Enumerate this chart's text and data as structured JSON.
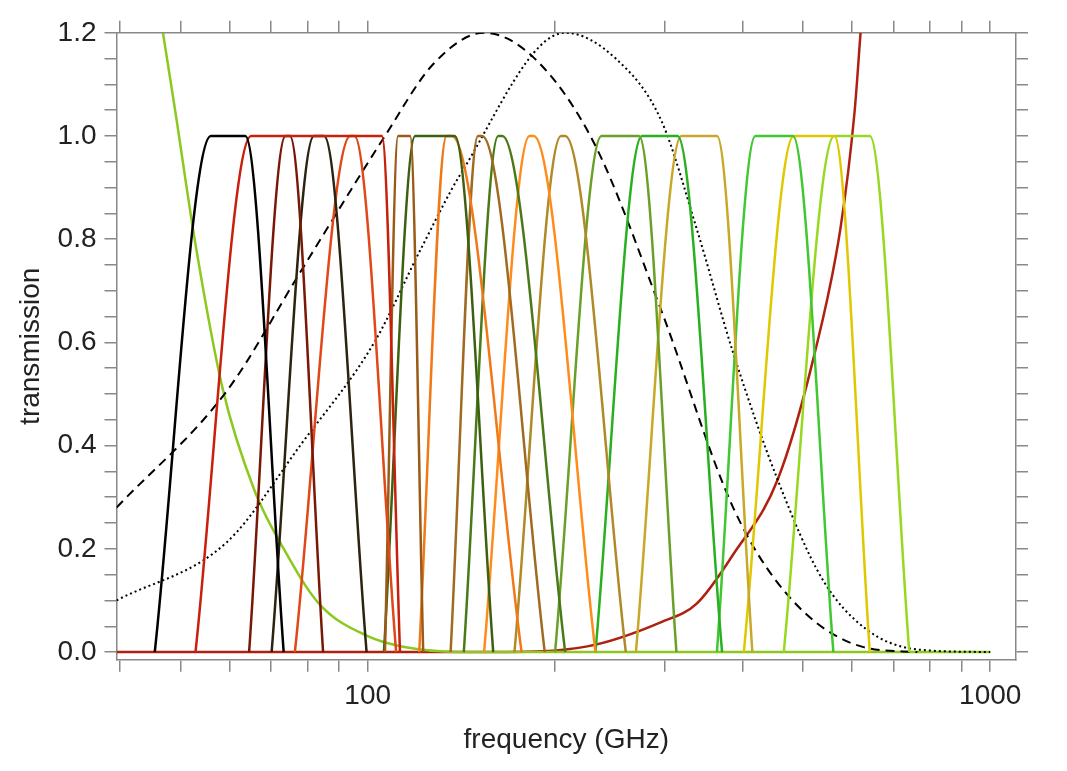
{
  "chart_data": {
    "type": "line",
    "xlabel": "frequency (GHz)",
    "ylabel": "transmission",
    "log": "x",
    "marker": "none",
    "xlim": [
      39.5,
      1100
    ],
    "ylim": [
      -0.015,
      1.2
    ],
    "xticks": [
      {
        "value": 40,
        "label": null
      },
      {
        "value": 50,
        "label": null
      },
      {
        "value": 60,
        "label": null
      },
      {
        "value": 70,
        "label": null
      },
      {
        "value": 80,
        "label": null
      },
      {
        "value": 90,
        "label": null
      },
      100,
      {
        "value": 200,
        "label": null
      },
      {
        "value": 300,
        "label": null
      },
      {
        "value": 400,
        "label": null
      },
      {
        "value": 500,
        "label": null
      },
      {
        "value": 600,
        "label": null
      },
      {
        "value": 700,
        "label": null
      },
      {
        "value": 800,
        "label": null
      },
      {
        "value": 900,
        "label": null
      },
      1000
    ],
    "yticks": [
      {
        "value": 0,
        "label": "0.0"
      },
      {
        "value": 0.05,
        "label": null
      },
      {
        "value": 0.1,
        "label": null
      },
      {
        "value": 0.15,
        "label": null
      },
      {
        "value": 0.2,
        "label": "0.2"
      },
      {
        "value": 0.25,
        "label": null
      },
      {
        "value": 0.3,
        "label": null
      },
      {
        "value": 0.35,
        "label": null
      },
      {
        "value": 0.4,
        "label": "0.4"
      },
      {
        "value": 0.45,
        "label": null
      },
      {
        "value": 0.5,
        "label": null
      },
      {
        "value": 0.55,
        "label": null
      },
      {
        "value": 0.6,
        "label": "0.6"
      },
      {
        "value": 0.65,
        "label": null
      },
      {
        "value": 0.7,
        "label": null
      },
      {
        "value": 0.75,
        "label": null
      },
      {
        "value": 0.8,
        "label": "0.8"
      },
      {
        "value": 0.85,
        "label": null
      },
      {
        "value": 0.9,
        "label": null
      },
      {
        "value": 0.95,
        "label": null
      },
      {
        "value": 1.0,
        "label": "1.0"
      },
      {
        "value": 1.05,
        "label": null
      },
      {
        "value": 1.1,
        "label": null
      },
      {
        "value": 1.15,
        "label": null
      },
      {
        "value": 1.2,
        "label": "1.2"
      }
    ],
    "series": [
      {
        "color": "#000000",
        "x": [
          45.5,
          56.0,
          63.6,
          73.3
        ],
        "values": [
          0,
          1,
          1,
          0
        ]
      },
      {
        "color": "#c8200c",
        "x": [
          52.9,
          65.0,
          105.4,
          112.7
        ],
        "values": [
          0,
          1,
          1,
          0
        ]
      },
      {
        "color": "#7a1808",
        "x": [
          64.5,
          73.8,
          75.0,
          84.8
        ],
        "values": [
          0,
          1,
          1,
          0
        ]
      },
      {
        "color": "#2a2410",
        "x": [
          70.1,
          82.0,
          85.1,
          99.6
        ],
        "values": [
          0,
          1,
          1,
          0
        ]
      },
      {
        "color": "#e04818",
        "x": [
          76.4,
          93.8,
          95.2,
          111.1
        ],
        "values": [
          0,
          1,
          1,
          0
        ]
      },
      {
        "color": "#9a5a18",
        "x": [
          106.6,
          111.9,
          117.0,
          122.8
        ],
        "values": [
          0,
          1,
          1,
          0
        ]
      },
      {
        "color": "#3d6010",
        "x": [
          106.2,
          119.2,
          138.0,
          159.1
        ],
        "values": [
          0,
          1,
          1,
          0
        ]
      },
      {
        "color": "#f07818",
        "x": [
          121.0,
          133.9,
          136.5,
          176.7
        ],
        "values": [
          0,
          1,
          1,
          0
        ]
      },
      {
        "color": "#a06a20",
        "x": [
          135.9,
          150.4,
          152.7,
          192.5
        ],
        "values": [
          0,
          1,
          1,
          0
        ]
      },
      {
        "color": "#4a7a18",
        "x": [
          142.7,
          162.1,
          164.5,
          207.6
        ],
        "values": [
          0,
          1,
          1,
          0
        ]
      },
      {
        "color": "#ff8c1a",
        "x": [
          153.8,
          182.0,
          184.8,
          232.2
        ],
        "values": [
          0,
          1,
          1,
          0
        ]
      },
      {
        "color": "#b08a28",
        "x": [
          172.1,
          204.5,
          207.6,
          259.8
        ],
        "values": [
          0,
          1,
          1,
          0
        ]
      },
      {
        "color": "#6aa028",
        "x": [
          200,
          237.5,
          272.8,
          313.3
        ],
        "values": [
          0,
          1,
          1,
          0
        ]
      },
      {
        "color": "#28b020",
        "x": [
          232.2,
          275.9,
          314.5,
          370.9
        ],
        "values": [
          0,
          1,
          1,
          0
        ]
      },
      {
        "color": "#c8a828",
        "x": [
          269.7,
          319.2,
          363.9,
          414.9
        ],
        "values": [
          0,
          1,
          1,
          0
        ]
      },
      {
        "color": "#40c830",
        "x": [
          363.9,
          419.6,
          481.9,
          559.8
        ],
        "values": [
          0,
          1,
          1,
          0
        ]
      },
      {
        "color": "#e0c800",
        "x": [
          402,
          483.7,
          561.7,
          640.5
        ],
        "values": [
          0,
          1,
          1,
          0
        ]
      },
      {
        "color": "#98d820",
        "x": [
          466.0,
          561.7,
          640.5,
          741.2
        ],
        "values": [
          0,
          1,
          1,
          0
        ]
      },
      {
        "color": "#000000",
        "line_style": "dashed",
        "x": [
          39.5,
          59.4,
          78.1,
          106.6,
          127.6,
          153.8,
          185.5,
          231.3,
          296.2,
          386.4,
          474.8,
          623.8,
          763.8
        ],
        "values": [
          0.28,
          0.506,
          0.738,
          1.0,
          1.14,
          1.2,
          1.15,
          0.985,
          0.662,
          0.28,
          0.108,
          0.01,
          0
        ]
      },
      {
        "color": "#000000",
        "line_style": "dotted",
        "x": [
          39.5,
          59.4,
          78.1,
          102.7,
          121.5,
          141.6,
          207.6,
          250.3,
          296.2,
          337.7,
          386.4,
          455.5,
          537.0,
          631.0,
          763.8,
          1000
        ],
        "values": [
          0.1,
          0.213,
          0.402,
          0.602,
          0.779,
          0.93,
          1.2,
          1.15,
          1.03,
          0.82,
          0.58,
          0.334,
          0.142,
          0.045,
          0.005,
          0
        ]
      },
      {
        "color": "#8cc820",
        "x": [
          46.9,
          49.1,
          52.9,
          58.5,
          65.8,
          73.0,
          83.5,
          99.6,
          121.5,
          149.8,
          1000
        ],
        "values": [
          1.2,
          1.047,
          0.79,
          0.51,
          0.313,
          0.204,
          0.094,
          0.032,
          0.005,
          0,
          0
        ]
      },
      {
        "color": "#b02010",
        "x": [
          39.5,
          160.3,
          225.3,
          296.2,
          337.7,
          386.4,
          455.5,
          521.2,
          574.5,
          605.5,
          619
        ],
        "values": [
          0,
          0,
          0.011,
          0.058,
          0.094,
          0.189,
          0.334,
          0.574,
          0.82,
          1.047,
          1.2
        ]
      }
    ]
  }
}
